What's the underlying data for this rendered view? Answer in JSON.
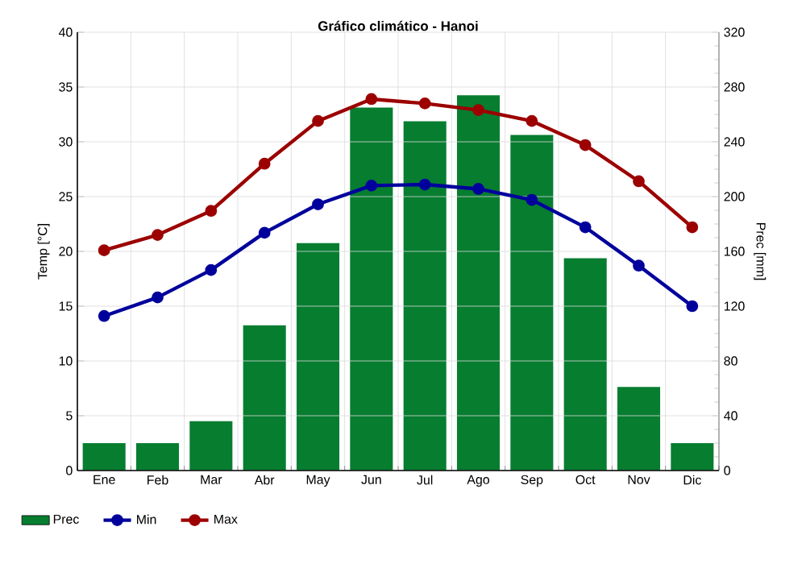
{
  "chart_data": {
    "type": "line",
    "title": "Gráfico climático - Hanoi",
    "ylabel": "Temp [°C]",
    "y2label": "Prec [mm]",
    "categories": [
      "Ene",
      "Feb",
      "Mar",
      "Abr",
      "May",
      "Jun",
      "Jul",
      "Ago",
      "Sep",
      "Oct",
      "Nov",
      "Dic"
    ],
    "series": [
      {
        "name": "Prec",
        "type": "bar",
        "axis": "y2",
        "color": "#077d30",
        "values": [
          20,
          20,
          36,
          106,
          166,
          265,
          255,
          274,
          245,
          155,
          61,
          20
        ]
      },
      {
        "name": "Min",
        "color": "#00009c",
        "values": [
          14.1,
          15.8,
          18.3,
          21.7,
          24.3,
          26.0,
          26.1,
          25.7,
          24.7,
          22.2,
          18.7,
          15.0
        ]
      },
      {
        "name": "Max",
        "color": "#9c0000",
        "values": [
          20.1,
          21.5,
          23.7,
          28.0,
          31.9,
          33.9,
          33.5,
          32.9,
          31.9,
          29.7,
          26.4,
          22.2
        ]
      }
    ],
    "ylim": [
      0,
      40
    ],
    "yticks": [
      0,
      5,
      10,
      15,
      20,
      25,
      30,
      35,
      40
    ],
    "y2lim": [
      0,
      320
    ],
    "y2ticks": [
      0,
      40,
      80,
      120,
      160,
      200,
      240,
      280,
      320
    ],
    "grid": true,
    "legend": "bottom",
    "marker": "circle"
  }
}
